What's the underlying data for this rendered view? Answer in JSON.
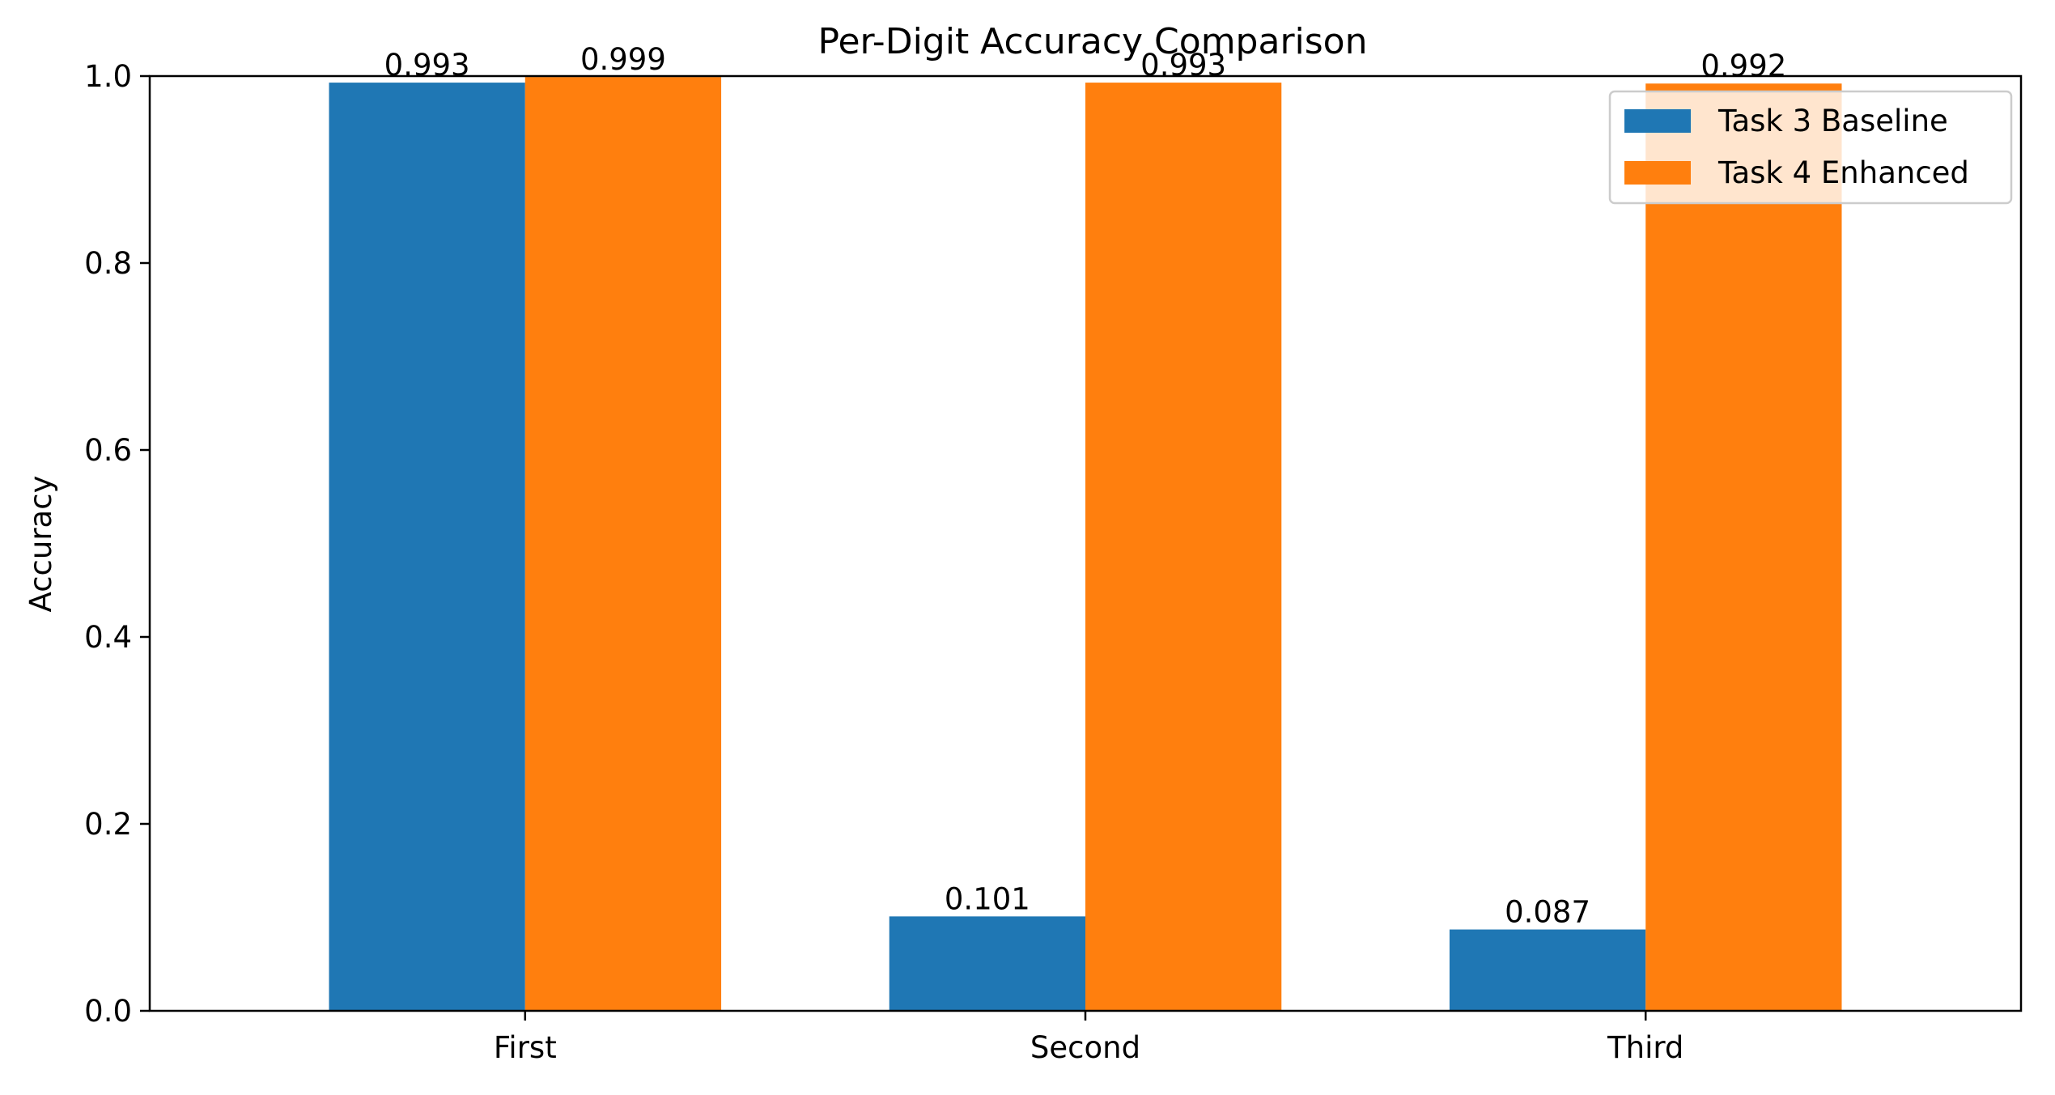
{
  "chart_data": {
    "type": "bar",
    "title": "Per-Digit Accuracy Comparison",
    "xlabel": "",
    "ylabel": "Accuracy",
    "categories": [
      "First",
      "Second",
      "Third"
    ],
    "series": [
      {
        "name": "Task 3 Baseline",
        "color": "#1f77b4",
        "values": [
          0.993,
          0.101,
          0.087
        ],
        "labels": [
          "0.993",
          "0.101",
          "0.087"
        ]
      },
      {
        "name": "Task 4 Enhanced",
        "color": "#ff7f0e",
        "values": [
          0.999,
          0.993,
          0.992
        ],
        "labels": [
          "0.999",
          "0.993",
          "0.992"
        ]
      }
    ],
    "ylim": [
      0.0,
      1.0
    ],
    "yticks": [
      0.0,
      0.2,
      0.4,
      0.6,
      0.8,
      1.0
    ],
    "ytick_labels": [
      "0.0",
      "0.2",
      "0.4",
      "0.6",
      "0.8",
      "1.0"
    ],
    "grid": false,
    "legend_position": "top-right"
  }
}
